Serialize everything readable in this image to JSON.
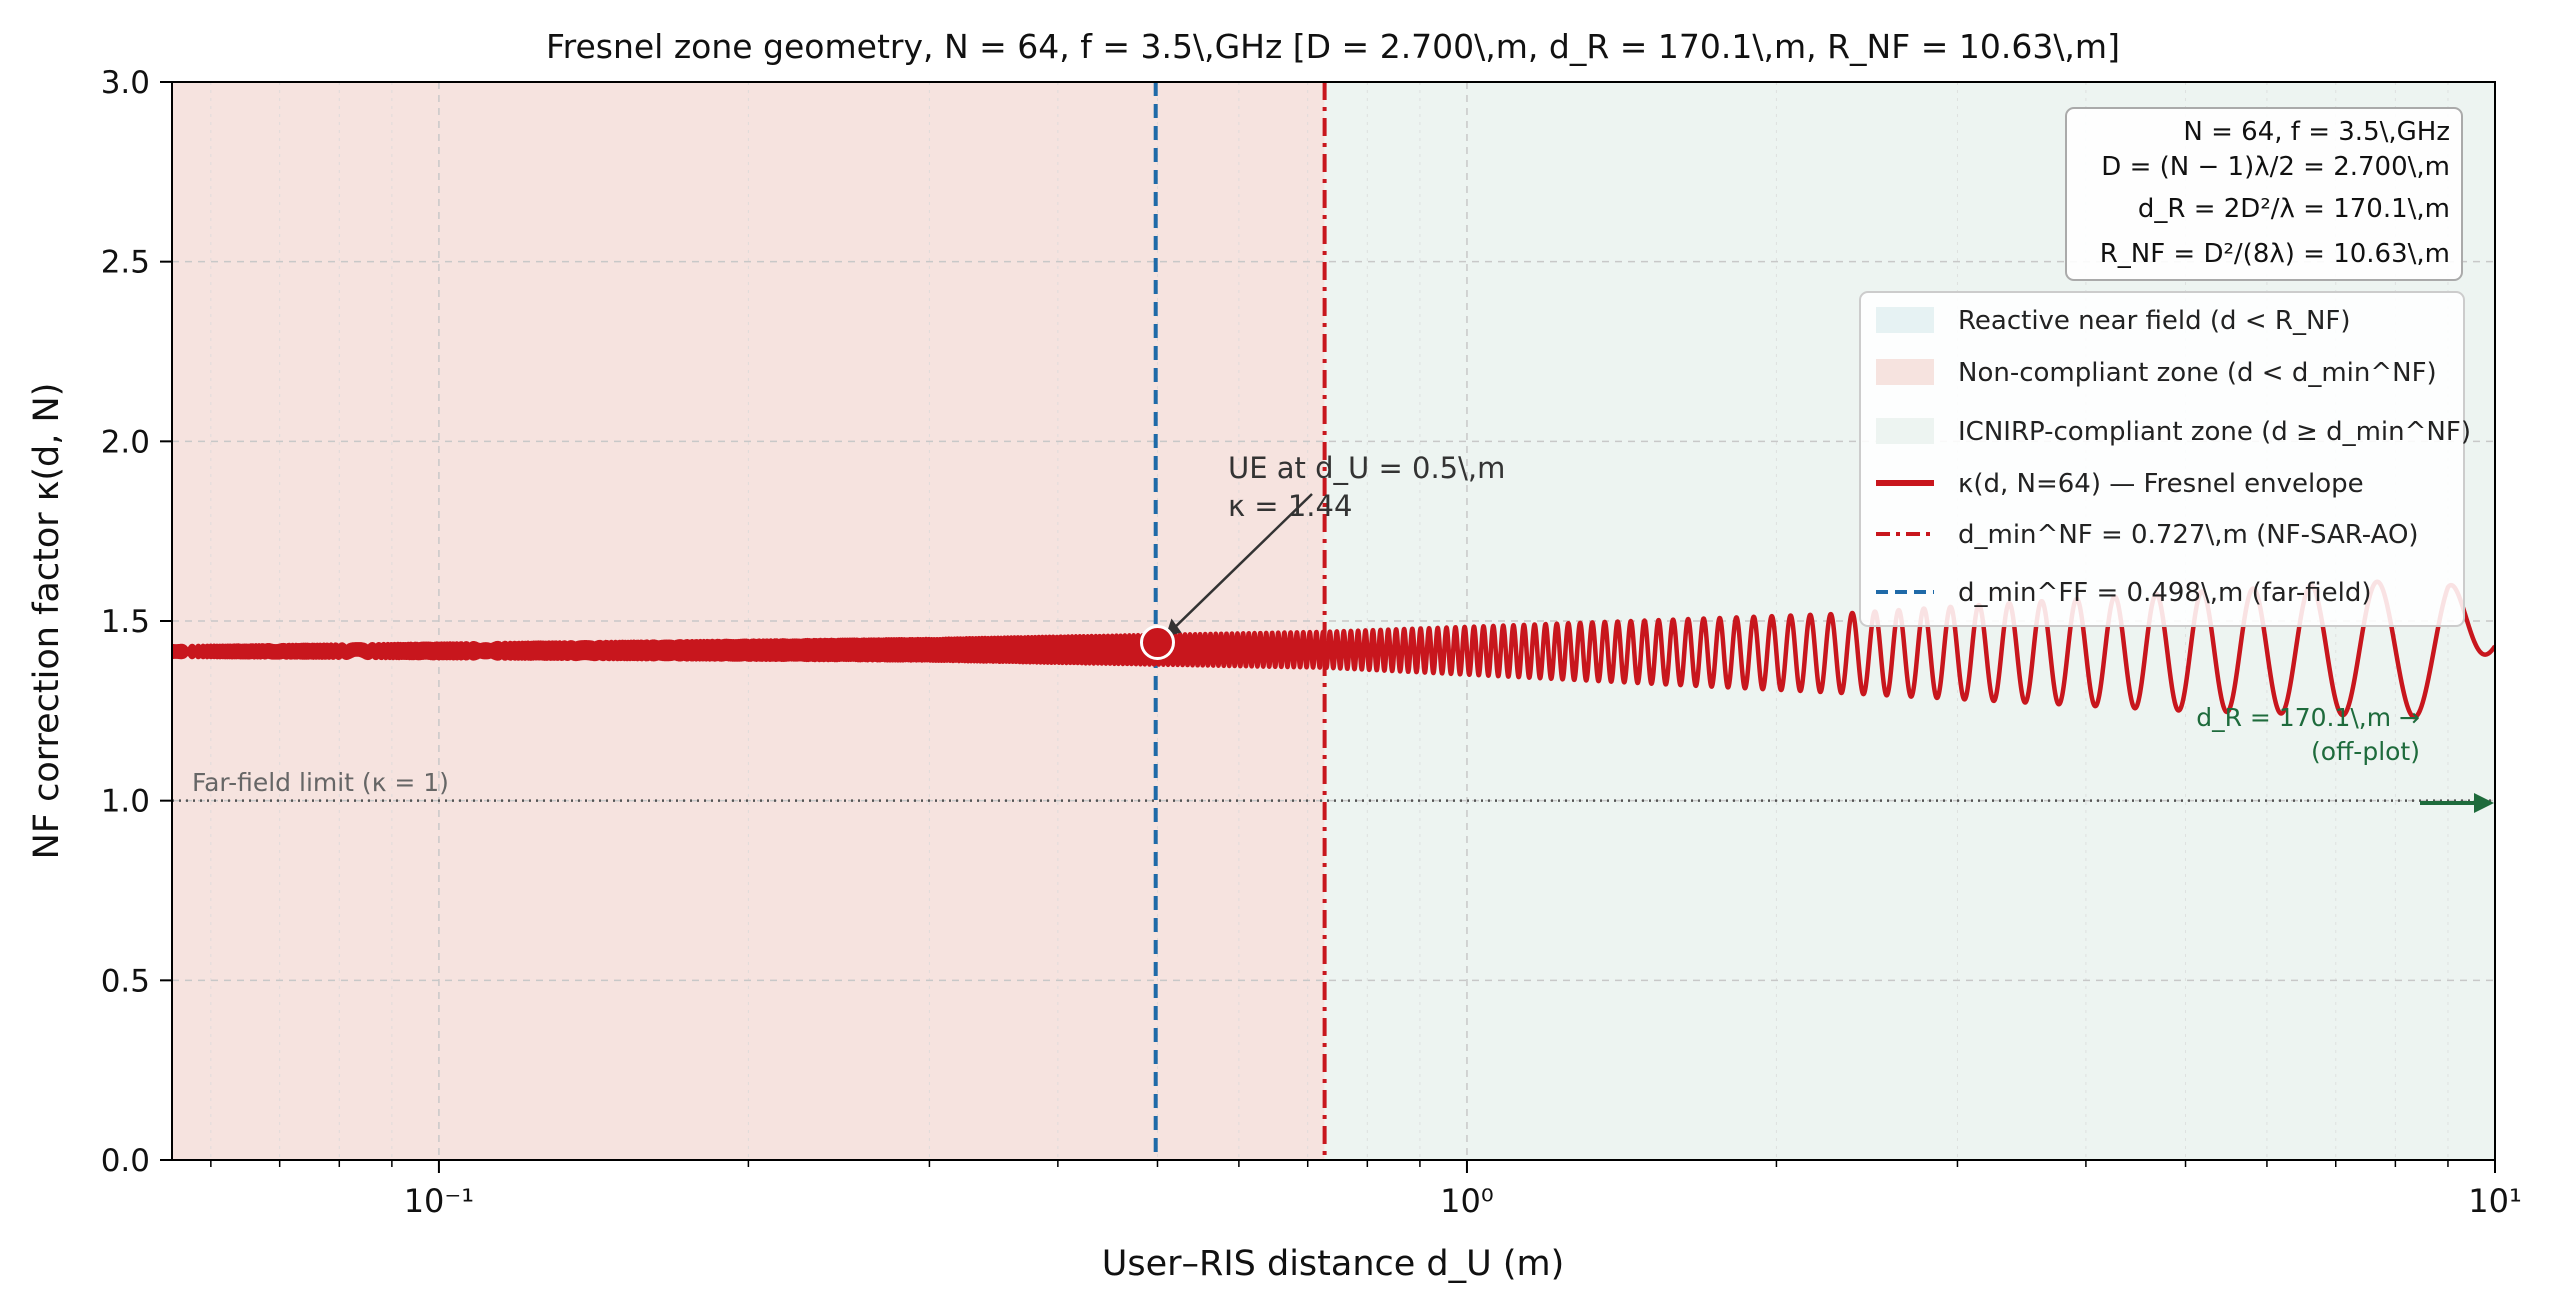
{
  "chart_data": {
    "type": "line",
    "title": "Fresnel zone geometry, N = 64, f = 3.5\\,GHz [D = 2.700\\,m, d_R = 170.1\\,m, R_NF = 10.63\\,m]",
    "xlabel": "User–RIS distance d_U (m)",
    "ylabel": "NF correction factor κ(d, N)",
    "x_scale": "log",
    "xlim": [
      0.055,
      10
    ],
    "ylim": [
      0,
      3.0
    ],
    "grid": true,
    "legend_position": "upper right",
    "x_ticks": [
      {
        "value": 0.1,
        "label": "10⁻¹"
      },
      {
        "value": 1,
        "label": "10⁰"
      },
      {
        "value": 10,
        "label": "10¹"
      }
    ],
    "y_ticks": [
      {
        "value": 0.0,
        "label": "0.0"
      },
      {
        "value": 0.5,
        "label": "0.5"
      },
      {
        "value": 1.0,
        "label": "1.0"
      },
      {
        "value": 1.5,
        "label": "1.5"
      },
      {
        "value": 2.0,
        "label": "2.0"
      },
      {
        "value": 2.5,
        "label": "2.5"
      },
      {
        "value": 3.0,
        "label": "3.0"
      }
    ],
    "regions": [
      {
        "name": "Non-compliant zone (d < d_min^NF)",
        "x_range": [
          0.055,
          0.727
        ],
        "color": "#f6e3df"
      },
      {
        "name": "ICNIRP-compliant zone (d ≥ d_min^NF)",
        "x_range": [
          0.727,
          10
        ],
        "color": "#edf4f1"
      },
      {
        "name": "Reactive near field (d < R_NF)",
        "color": "#e6f2f3"
      }
    ],
    "series": [
      {
        "name": "κ(d, N=64) — Fresnel envelope",
        "color": "#c8161d",
        "mean": 1.42,
        "points": [
          {
            "x": 0.055,
            "y_low": 1.4,
            "y_high": 1.43
          },
          {
            "x": 0.3,
            "y_low": 1.39,
            "y_high": 1.45
          },
          {
            "x": 0.727,
            "y_low": 1.37,
            "y_high": 1.47
          },
          {
            "x": 2.3,
            "y_low": 1.3,
            "y_high": 1.52
          },
          {
            "x": 5,
            "y_low": 1.25,
            "y_high": 1.58
          },
          {
            "x": 9,
            "y_low": 1.23,
            "y_high": 1.62
          },
          {
            "x": 10,
            "y_low": 1.43,
            "y_high": 1.43
          }
        ]
      }
    ],
    "vertical_lines": [
      {
        "name": "d_min^NF = 0.727\\,m (NF-SAR-AO)",
        "x": 0.727,
        "color": "#c8161d",
        "style": "dashdot"
      },
      {
        "name": "d_min^FF = 0.498\\,m (far-field)",
        "x": 0.498,
        "color": "#1f6aa8",
        "style": "dashed"
      }
    ],
    "horizontal_lines": [
      {
        "name": "Far-field limit (κ = 1)",
        "y": 1.0,
        "color": "#555555",
        "style": "dotted"
      }
    ],
    "marker": {
      "x": 0.5,
      "y": 1.44,
      "label_line1": "UE at d_U = 0.5\\,m",
      "label_line2": "κ = 1.44"
    },
    "off_plot_note": {
      "line1": "d_R = 170.1\\,m →",
      "line2": "(off-plot)",
      "color": "#1e6b3c"
    },
    "info_box": [
      "N = 64, f = 3.5\\,GHz",
      "D = (N − 1)λ/2 = 2.700\\,m",
      "d_R = 2D²/λ = 170.1\\,m",
      "R_NF = D²/(8λ) = 10.63\\,m"
    ]
  }
}
